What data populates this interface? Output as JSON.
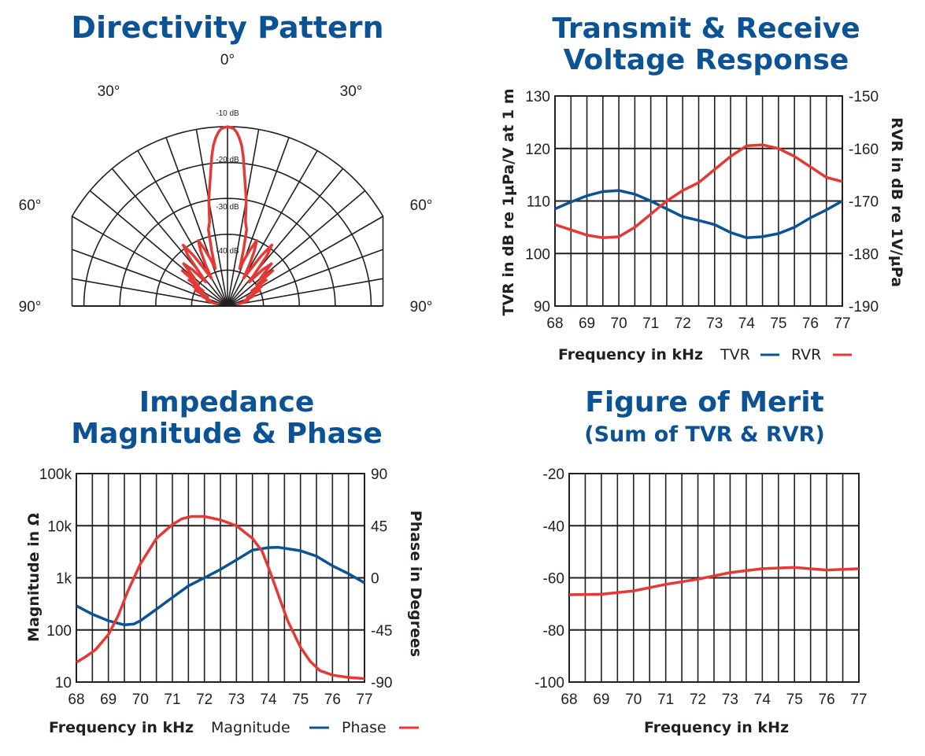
{
  "colors": {
    "blue": "#0b5394",
    "red": "#e53935",
    "ink": "#231f20"
  },
  "chart_data": [
    {
      "type": "polar",
      "title": "Directivity Pattern",
      "angle_labels": {
        "top": "0°",
        "upper_left": "30°",
        "upper_right": "30°",
        "mid_left": "60°",
        "mid_right": "60°",
        "base_left": "90°",
        "base_right": "90°"
      },
      "ring_labels": [
        "-10 dB",
        "-20 dB",
        "-30 dB",
        "-40 dB"
      ],
      "rlim_db": [
        -50,
        0
      ],
      "series": [
        {
          "color": "red",
          "points_deg_db": [
            [
              -80,
              -47
            ],
            [
              -78,
              -46
            ],
            [
              -76,
              -45
            ],
            [
              -74,
              -44
            ],
            [
              -72,
              -45
            ],
            [
              -70,
              -43
            ],
            [
              -68,
              -42
            ],
            [
              -66,
              -44
            ],
            [
              -64,
              -40
            ],
            [
              -62,
              -42
            ],
            [
              -60,
              -39
            ],
            [
              -58,
              -42
            ],
            [
              -56,
              -37
            ],
            [
              -54,
              -40
            ],
            [
              -52,
              -34
            ],
            [
              -50,
              -38
            ],
            [
              -48,
              -36
            ],
            [
              -46,
              -33
            ],
            [
              -44,
              -36
            ],
            [
              -42,
              -41
            ],
            [
              -40,
              -38
            ],
            [
              -38,
              -32
            ],
            [
              -36,
              -29
            ],
            [
              -34,
              -33
            ],
            [
              -32,
              -38
            ],
            [
              -30,
              -41
            ],
            [
              -28,
              -37
            ],
            [
              -26,
              -33
            ],
            [
              -24,
              -30
            ],
            [
              -22,
              -33
            ],
            [
              -20,
              -36
            ],
            [
              -18,
              -39
            ],
            [
              -16,
              -34
            ],
            [
              -14,
              -28
            ],
            [
              -12,
              -26
            ],
            [
              -10,
              -20
            ],
            [
              -8,
              -15
            ],
            [
              -6,
              -8
            ],
            [
              -5,
              -5
            ],
            [
              -4,
              -3
            ],
            [
              -3,
              -1.5
            ],
            [
              -2,
              -0.5
            ],
            [
              0,
              0
            ],
            [
              2,
              -0.5
            ],
            [
              3,
              -1.5
            ],
            [
              4,
              -3
            ],
            [
              5,
              -5
            ],
            [
              6,
              -8
            ],
            [
              8,
              -15
            ],
            [
              10,
              -20
            ],
            [
              12,
              -26
            ],
            [
              14,
              -28
            ],
            [
              16,
              -34
            ],
            [
              18,
              -39
            ],
            [
              20,
              -36
            ],
            [
              22,
              -33
            ],
            [
              24,
              -30
            ],
            [
              26,
              -33
            ],
            [
              28,
              -37
            ],
            [
              30,
              -41
            ],
            [
              32,
              -38
            ],
            [
              34,
              -33
            ],
            [
              36,
              -29
            ],
            [
              38,
              -32
            ],
            [
              40,
              -38
            ],
            [
              42,
              -41
            ],
            [
              44,
              -36
            ],
            [
              46,
              -33
            ],
            [
              48,
              -36
            ],
            [
              50,
              -38
            ],
            [
              52,
              -34
            ],
            [
              54,
              -40
            ],
            [
              56,
              -37
            ],
            [
              58,
              -42
            ],
            [
              60,
              -39
            ],
            [
              62,
              -42
            ],
            [
              64,
              -40
            ],
            [
              66,
              -44
            ],
            [
              68,
              -42
            ],
            [
              70,
              -43
            ],
            [
              72,
              -45
            ],
            [
              74,
              -44
            ],
            [
              76,
              -45
            ],
            [
              78,
              -46
            ],
            [
              80,
              -47
            ]
          ]
        }
      ]
    },
    {
      "type": "line",
      "title": [
        "Transmit & Receive",
        "Voltage Response"
      ],
      "xlabel": "Frequency in kHz",
      "ylabel": "TVR in dB re 1μPa/V at 1 m",
      "y2label": "RVR in dB re 1V/μPa",
      "x_ticks": [
        "68",
        "69",
        "70",
        "71",
        "72",
        "73",
        "74",
        "75",
        "76",
        "77"
      ],
      "y_ticks": [
        "130",
        "120",
        "110",
        "100",
        "90"
      ],
      "y2_ticks": [
        "-150",
        "-160",
        "-170",
        "-180",
        "-190"
      ],
      "xlim": [
        68,
        77
      ],
      "ylim": [
        90,
        130
      ],
      "y2lim": [
        -190,
        -150
      ],
      "grid": true,
      "legend": {
        "position": "bottom",
        "label_prefix": "Frequency in kHz"
      },
      "series": [
        {
          "name": "TVR",
          "axis": "left",
          "color": "blue",
          "x": [
            68,
            68.5,
            69,
            69.5,
            70,
            70.5,
            71,
            71.5,
            72,
            72.5,
            73,
            73.5,
            74,
            74.5,
            75,
            75.5,
            76,
            76.5,
            77
          ],
          "y": [
            108.5,
            109.8,
            111,
            111.8,
            112,
            111.3,
            110,
            108.5,
            107,
            106.3,
            105.5,
            104,
            103,
            103.2,
            103.8,
            105,
            106.8,
            108.3,
            110
          ]
        },
        {
          "name": "RVR",
          "axis": "right",
          "color": "red",
          "x": [
            68,
            68.5,
            69,
            69.5,
            70,
            70.5,
            71,
            71.5,
            72,
            72.5,
            73,
            73.5,
            74,
            74.5,
            75,
            75.5,
            76,
            76.5,
            77
          ],
          "y": [
            -174.5,
            -175.5,
            -176.5,
            -177,
            -176.8,
            -175,
            -172.5,
            -170,
            -168,
            -166.5,
            -164,
            -161.5,
            -159.5,
            -159.3,
            -160,
            -161.5,
            -163.5,
            -165.5,
            -166.3
          ]
        }
      ]
    },
    {
      "type": "line",
      "title": [
        "Impedance",
        "Magnitude & Phase"
      ],
      "xlabel": "Frequency in kHz",
      "ylabel": "Magnitude in Ω",
      "y2label": "Phase in Degrees",
      "x_ticks": [
        "68",
        "69",
        "70",
        "71",
        "72",
        "73",
        "74",
        "75",
        "76",
        "77"
      ],
      "y_ticks": [
        "100k",
        "10k",
        "1k",
        "100",
        "10"
      ],
      "y2_ticks": [
        "90",
        "45",
        "0",
        "-45",
        "-90"
      ],
      "xlim": [
        68,
        77
      ],
      "ylim_log": [
        10,
        100000
      ],
      "y2lim": [
        -90,
        90
      ],
      "grid": true,
      "legend": {
        "position": "bottom",
        "label_prefix": "Frequency in kHz"
      },
      "series": [
        {
          "name": "Magnitude",
          "axis": "left",
          "color": "blue",
          "x": [
            68,
            68.5,
            69,
            69.5,
            69.8,
            70,
            70.5,
            71,
            71.5,
            72,
            72.5,
            73,
            73.5,
            74,
            74.3,
            74.5,
            75,
            75.5,
            76,
            76.5,
            77
          ],
          "y": [
            290,
            200,
            150,
            125,
            130,
            150,
            250,
            420,
            700,
            1000,
            1450,
            2200,
            3400,
            3800,
            3850,
            3700,
            3300,
            2600,
            1700,
            1200,
            800
          ]
        },
        {
          "name": "Phase",
          "axis": "right",
          "color": "red",
          "x": [
            68,
            68.3,
            68.6,
            69,
            69.3,
            69.6,
            70,
            70.5,
            71,
            71.3,
            71.6,
            72,
            72.5,
            73,
            73.5,
            73.8,
            74,
            74.3,
            74.6,
            75,
            75.3,
            75.6,
            76,
            76.5,
            77
          ],
          "y": [
            -73,
            -68,
            -62,
            -49,
            -33,
            -12,
            12,
            34,
            46,
            51,
            53,
            53,
            50,
            45,
            34,
            23,
            9,
            -14,
            -37,
            -60,
            -72,
            -80,
            -84,
            -86,
            -87
          ]
        }
      ]
    },
    {
      "type": "line",
      "title": [
        "Figure of Merit",
        "(Sum of TVR & RVR)"
      ],
      "xlabel": "Frequency in kHz",
      "x_ticks": [
        "68",
        "69",
        "70",
        "71",
        "72",
        "73",
        "74",
        "75",
        "76",
        "77"
      ],
      "y_ticks": [
        "-20",
        "-40",
        "-60",
        "-80",
        "-100"
      ],
      "xlim": [
        68,
        77
      ],
      "ylim": [
        -100,
        -20
      ],
      "grid": true,
      "series": [
        {
          "color": "red",
          "x": [
            68,
            69,
            70,
            71,
            72,
            73,
            74,
            75,
            76,
            77
          ],
          "y": [
            -66.5,
            -66.3,
            -65,
            -62.5,
            -60.5,
            -58,
            -56.5,
            -56,
            -57,
            -56.5
          ]
        }
      ]
    }
  ]
}
